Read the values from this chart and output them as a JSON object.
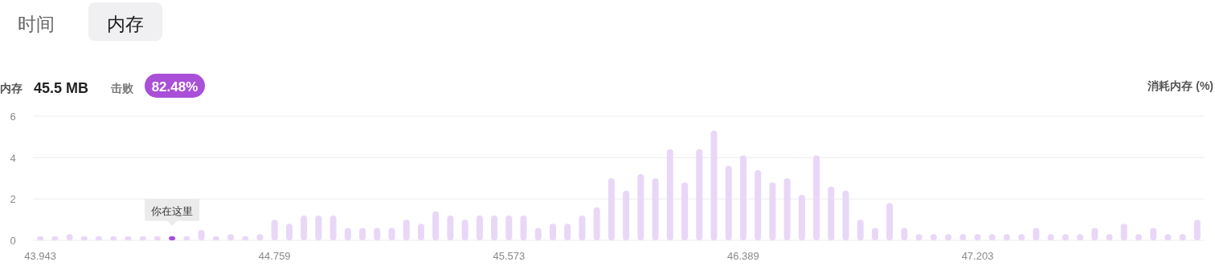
{
  "chart_data": {
    "type": "bar",
    "ylabel": "消耗内存 (%)",
    "annotations": [
      "时间",
      "内存",
      "内存",
      "45.5 MB",
      "击败",
      "82.48%",
      "你在这里"
    ],
    "categories": [
      "43.943",
      null,
      null,
      null,
      null,
      null,
      null,
      null,
      null,
      null,
      null,
      null,
      null,
      null,
      null,
      null,
      "44.759",
      null,
      null,
      null,
      null,
      null,
      null,
      null,
      null,
      null,
      null,
      null,
      null,
      null,
      null,
      null,
      "45.573",
      null,
      null,
      null,
      null,
      null,
      null,
      null,
      null,
      null,
      null,
      null,
      null,
      null,
      null,
      null,
      "46.389",
      null,
      null,
      null,
      null,
      null,
      null,
      null,
      null,
      null,
      null,
      null,
      null,
      null,
      null,
      null,
      "47.203",
      null,
      null,
      null,
      null,
      null,
      null,
      null,
      null,
      null,
      null,
      null,
      null,
      null,
      null,
      null
    ],
    "values": [
      0.2,
      0.2,
      0.3,
      0.2,
      0.2,
      0.2,
      0.2,
      0.2,
      0.2,
      0.2,
      0.2,
      0.5,
      0.2,
      0.3,
      0.2,
      0.3,
      1.0,
      0.8,
      1.2,
      1.2,
      1.2,
      0.6,
      0.6,
      0.6,
      0.6,
      1.0,
      0.8,
      1.4,
      1.2,
      1.0,
      1.2,
      1.2,
      1.2,
      1.2,
      0.6,
      0.8,
      0.8,
      1.2,
      1.6,
      3.0,
      2.4,
      3.2,
      3.0,
      4.4,
      2.8,
      4.4,
      5.3,
      3.6,
      4.1,
      3.4,
      2.8,
      3.0,
      2.2,
      4.1,
      2.6,
      2.4,
      1.0,
      0.6,
      1.8,
      0.6,
      0.3,
      0.3,
      0.3,
      0.3,
      0.3,
      0.3,
      0.3,
      0.3,
      0.6,
      0.3,
      0.3,
      0.3,
      0.6,
      0.3,
      0.8,
      0.3,
      0.6,
      0.3,
      0.3,
      1.0
    ],
    "colors": [
      "#e9d7f7",
      "#e9d7f7",
      "#e9d7f7",
      "#e9d7f7",
      "#e9d7f7",
      "#e9d7f7",
      "#e9d7f7",
      "#e9d7f7",
      "#e9d7f7",
      "#a94fd8",
      "#e9d7f7",
      "#e9d7f7",
      "#e9d7f7",
      "#e9d7f7",
      "#e9d7f7",
      "#e9d7f7",
      "#e9d7f7",
      "#e9d7f7",
      "#e9d7f7",
      "#e9d7f7",
      "#e9d7f7",
      "#e9d7f7",
      "#e9d7f7",
      "#e9d7f7",
      "#e9d7f7",
      "#e9d7f7",
      "#e9d7f7",
      "#e9d7f7",
      "#e9d7f7",
      "#e9d7f7",
      "#e9d7f7",
      "#e9d7f7",
      "#e9d7f7",
      "#e9d7f7",
      "#e9d7f7",
      "#e9d7f7",
      "#e9d7f7",
      "#e9d7f7",
      "#e9d7f7",
      "#e9d7f7",
      "#e9d7f7",
      "#e9d7f7",
      "#e9d7f7",
      "#e9d7f7",
      "#e9d7f7",
      "#e9d7f7",
      "#e9d7f7",
      "#e9d7f7",
      "#e9d7f7",
      "#e9d7f7",
      "#e9d7f7",
      "#e9d7f7",
      "#e9d7f7",
      "#e9d7f7",
      "#e9d7f7",
      "#e9d7f7",
      "#e9d7f7",
      "#e9d7f7",
      "#e9d7f7",
      "#e9d7f7",
      "#e9d7f7",
      "#e9d7f7",
      "#e9d7f7",
      "#e9d7f7",
      "#e9d7f7",
      "#e9d7f7",
      "#e9d7f7",
      "#e9d7f7",
      "#e9d7f7",
      "#e9d7f7",
      "#e9d7f7",
      "#e9d7f7",
      "#e9d7f7",
      "#e9d7f7",
      "#e9d7f7",
      "#e9d7f7",
      "#e9d7f7",
      "#e9d7f7",
      "#e9d7f7",
      "#e9d7f7"
    ],
    "ylim": [
      0,
      6
    ],
    "yticks": [
      0,
      2,
      4,
      6
    ],
    "grid": "y"
  }
}
